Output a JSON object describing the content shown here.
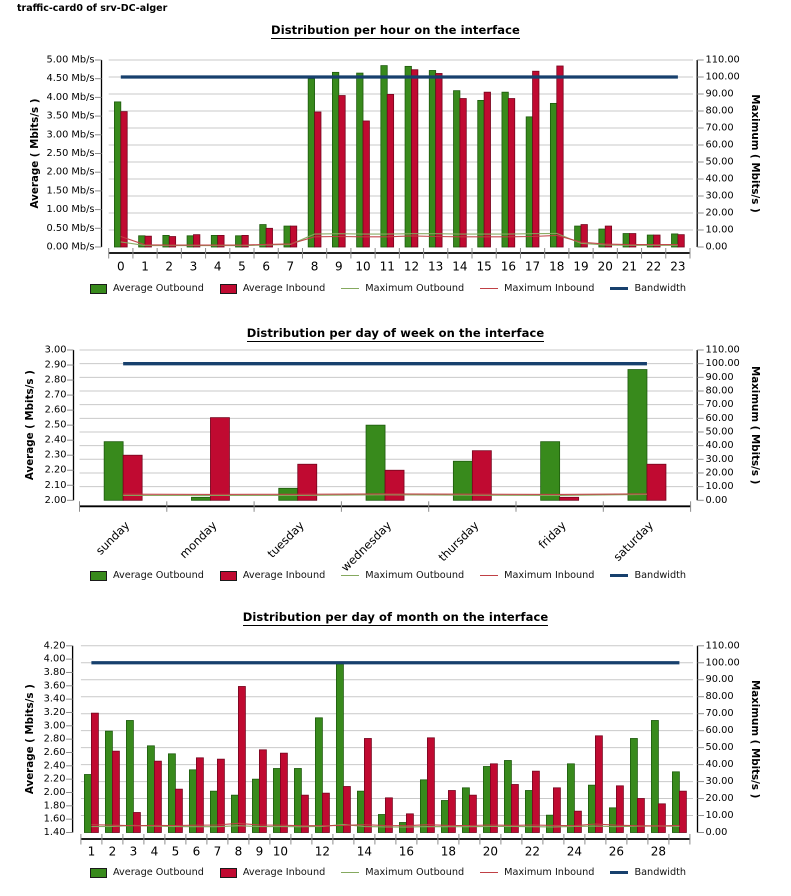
{
  "header": {
    "title": "traffic-card0 of srv-DC-alger"
  },
  "colors": {
    "avg_outbound": "#388a1c",
    "avg_outbound_border": "#1d5a0d",
    "avg_inbound": "#c00a31",
    "avg_inbound_border": "#74061e",
    "max_outbound": "#85a95f",
    "max_inbound": "#c04045",
    "bandwidth": "#17406d",
    "grid": "#c9c9c9",
    "tick": "#8c8c8c",
    "axis": "#000000"
  },
  "chart_data": [
    {
      "type": "bar",
      "title": "Distribution per hour on the interface",
      "categories": [
        "0",
        "1",
        "2",
        "3",
        "4",
        "5",
        "6",
        "7",
        "8",
        "9",
        "10",
        "11",
        "12",
        "13",
        "14",
        "15",
        "16",
        "17",
        "18",
        "19",
        "20",
        "21",
        "22",
        "23"
      ],
      "x_labels_shown": [
        "0",
        "1",
        "2",
        "3",
        "4",
        "5",
        "6",
        "7",
        "8",
        "9",
        "10",
        "11",
        "12",
        "13",
        "14",
        "15",
        "16",
        "17",
        "18",
        "19",
        "20",
        "21",
        "22",
        "23"
      ],
      "x_label_rotate": false,
      "left_axis": {
        "label": "Average ( Mbits/s )",
        "min": 0,
        "max": 5,
        "step": 0.5,
        "tick_suffix": " Mb/s",
        "decimals": 2
      },
      "right_axis": {
        "label": "Maximum ( Mbits/s )",
        "min": 0,
        "max": 110,
        "step": 10,
        "tick_suffix": "",
        "decimals": 2
      },
      "grid": true,
      "legend_position": "bottom",
      "series": [
        {
          "name": "Average Outbound",
          "kind": "bar",
          "axis": "left",
          "values": [
            3.88,
            0.3,
            0.31,
            0.3,
            0.31,
            0.3,
            0.6,
            0.56,
            4.5,
            4.67,
            4.65,
            4.85,
            4.83,
            4.72,
            4.18,
            3.92,
            4.14,
            3.48,
            3.84,
            0.56,
            0.48,
            0.36,
            0.32,
            0.35
          ]
        },
        {
          "name": "Average Inbound",
          "kind": "bar",
          "axis": "left",
          "values": [
            3.62,
            0.29,
            0.28,
            0.33,
            0.31,
            0.31,
            0.5,
            0.56,
            3.61,
            4.05,
            3.37,
            4.08,
            4.74,
            4.64,
            3.97,
            4.14,
            3.97,
            4.7,
            4.84,
            0.6,
            0.56,
            0.36,
            0.32,
            0.33
          ]
        },
        {
          "name": "Maximum Outbound",
          "kind": "line",
          "axis": "right",
          "values": [
            3.0,
            0.8,
            0.8,
            0.8,
            0.8,
            0.8,
            1.2,
            1.5,
            7.6,
            7.8,
            7.6,
            7.6,
            7.8,
            7.8,
            7.6,
            7.6,
            7.6,
            7.8,
            8.0,
            2.2,
            1.2,
            1.0,
            1.0,
            1.0
          ]
        },
        {
          "name": "Maximum Inbound",
          "kind": "line",
          "axis": "right",
          "values": [
            6.2,
            1.3,
            1.1,
            1.1,
            1.1,
            1.1,
            1.5,
            1.8,
            6.0,
            6.2,
            6.0,
            6.0,
            6.5,
            6.2,
            6.0,
            6.0,
            6.0,
            6.2,
            6.8,
            2.8,
            1.7,
            1.4,
            1.4,
            1.4
          ]
        },
        {
          "name": "Bandwidth",
          "kind": "band",
          "axis": "right",
          "value": 100
        }
      ]
    },
    {
      "type": "bar",
      "title": "Distribution per day of week on the interface",
      "categories": [
        "sunday",
        "monday",
        "tuesday",
        "wednesday",
        "thursday",
        "friday",
        "saturday"
      ],
      "x_labels_shown": [
        "sunday",
        "monday",
        "tuesday",
        "wednesday",
        "thursday",
        "friday",
        "saturday"
      ],
      "x_label_rotate": true,
      "left_axis": {
        "label": "Average ( Mbits/s )",
        "min": 2,
        "max": 3,
        "step": 0.1,
        "tick_suffix": "",
        "decimals": 2
      },
      "right_axis": {
        "label": "Maximum ( Mbits/s )",
        "min": 0,
        "max": 110,
        "step": 10,
        "tick_suffix": "",
        "decimals": 2
      },
      "grid": true,
      "legend_position": "bottom",
      "series": [
        {
          "name": "Average Outbound",
          "kind": "bar",
          "axis": "left",
          "values": [
            2.39,
            2.02,
            2.08,
            2.5,
            2.26,
            2.39,
            2.87
          ]
        },
        {
          "name": "Average Inbound",
          "kind": "bar",
          "axis": "left",
          "values": [
            2.3,
            2.55,
            2.24,
            2.2,
            2.33,
            2.02,
            2.24
          ]
        },
        {
          "name": "Maximum Outbound",
          "kind": "line",
          "axis": "right",
          "values": [
            3.6,
            3.5,
            3.6,
            4.0,
            3.7,
            3.6,
            4.3
          ]
        },
        {
          "name": "Maximum Inbound",
          "kind": "line",
          "axis": "right",
          "values": [
            4.5,
            4.3,
            4.4,
            4.7,
            4.5,
            4.3,
            4.7
          ]
        },
        {
          "name": "Bandwidth",
          "kind": "band",
          "axis": "right",
          "value": 100
        }
      ]
    },
    {
      "type": "bar",
      "title": "Distribution per day of month on the interface",
      "categories": [
        "1",
        "2",
        "3",
        "4",
        "5",
        "6",
        "7",
        "8",
        "9",
        "10",
        "11",
        "12",
        "13",
        "14",
        "15",
        "16",
        "17",
        "18",
        "19",
        "20",
        "21",
        "22",
        "23",
        "24",
        "25",
        "26",
        "27",
        "28",
        "29"
      ],
      "x_labels_shown": [
        "1",
        "2",
        "3",
        "4",
        "5",
        "6",
        "7",
        "8",
        "9",
        "10",
        "12",
        "14",
        "16",
        "18",
        "20",
        "22",
        "24",
        "26",
        "28"
      ],
      "x_label_rotate": false,
      "left_axis": {
        "label": "Average ( Mbits/s )",
        "min": 1.4,
        "max": 4.2,
        "step": 0.2,
        "tick_suffix": "",
        "decimals": 2
      },
      "right_axis": {
        "label": "Maximum ( Mbits/s )",
        "min": 0,
        "max": 110,
        "step": 10,
        "tick_suffix": "",
        "decimals": 2
      },
      "grid": true,
      "legend_position": "bottom",
      "series": [
        {
          "name": "Average Outbound",
          "kind": "bar",
          "axis": "left",
          "values": [
            2.27,
            2.92,
            3.08,
            2.7,
            2.58,
            2.34,
            2.02,
            1.96,
            2.2,
            2.36,
            2.36,
            3.12,
            3.93,
            2.02,
            1.67,
            1.55,
            2.19,
            1.88,
            2.07,
            2.39,
            2.48,
            2.03,
            1.66,
            2.43,
            2.11,
            1.77,
            2.81,
            3.08,
            2.31
          ]
        },
        {
          "name": "Average Inbound",
          "kind": "bar",
          "axis": "left",
          "values": [
            3.19,
            2.62,
            1.7,
            2.47,
            2.05,
            2.52,
            2.5,
            3.59,
            2.64,
            2.59,
            1.96,
            1.99,
            2.09,
            2.81,
            1.92,
            1.68,
            2.82,
            2.03,
            1.96,
            2.43,
            2.12,
            2.32,
            2.07,
            1.72,
            2.85,
            2.1,
            1.91,
            1.83,
            2.02
          ]
        },
        {
          "name": "Maximum Outbound",
          "kind": "line",
          "axis": "right",
          "values": [
            3.5,
            3.6,
            4.2,
            3.8,
            3.5,
            3.4,
            3.4,
            4.0,
            3.5,
            3.5,
            3.4,
            3.6,
            4.8,
            3.5,
            3.3,
            3.2,
            3.5,
            3.4,
            3.4,
            3.6,
            3.6,
            3.4,
            3.3,
            3.6,
            3.8,
            3.4,
            3.7,
            3.9,
            3.6
          ]
        },
        {
          "name": "Maximum Inbound",
          "kind": "line",
          "axis": "right",
          "values": [
            4.6,
            4.3,
            4.0,
            4.2,
            4.1,
            4.3,
            4.4,
            5.4,
            4.4,
            4.3,
            4.0,
            4.0,
            4.2,
            4.6,
            4.1,
            4.0,
            4.6,
            4.2,
            4.1,
            4.4,
            4.2,
            4.4,
            4.2,
            4.0,
            5.0,
            4.3,
            4.0,
            3.9,
            4.2
          ]
        },
        {
          "name": "Bandwidth",
          "kind": "band",
          "axis": "right",
          "value": 100
        }
      ]
    }
  ]
}
